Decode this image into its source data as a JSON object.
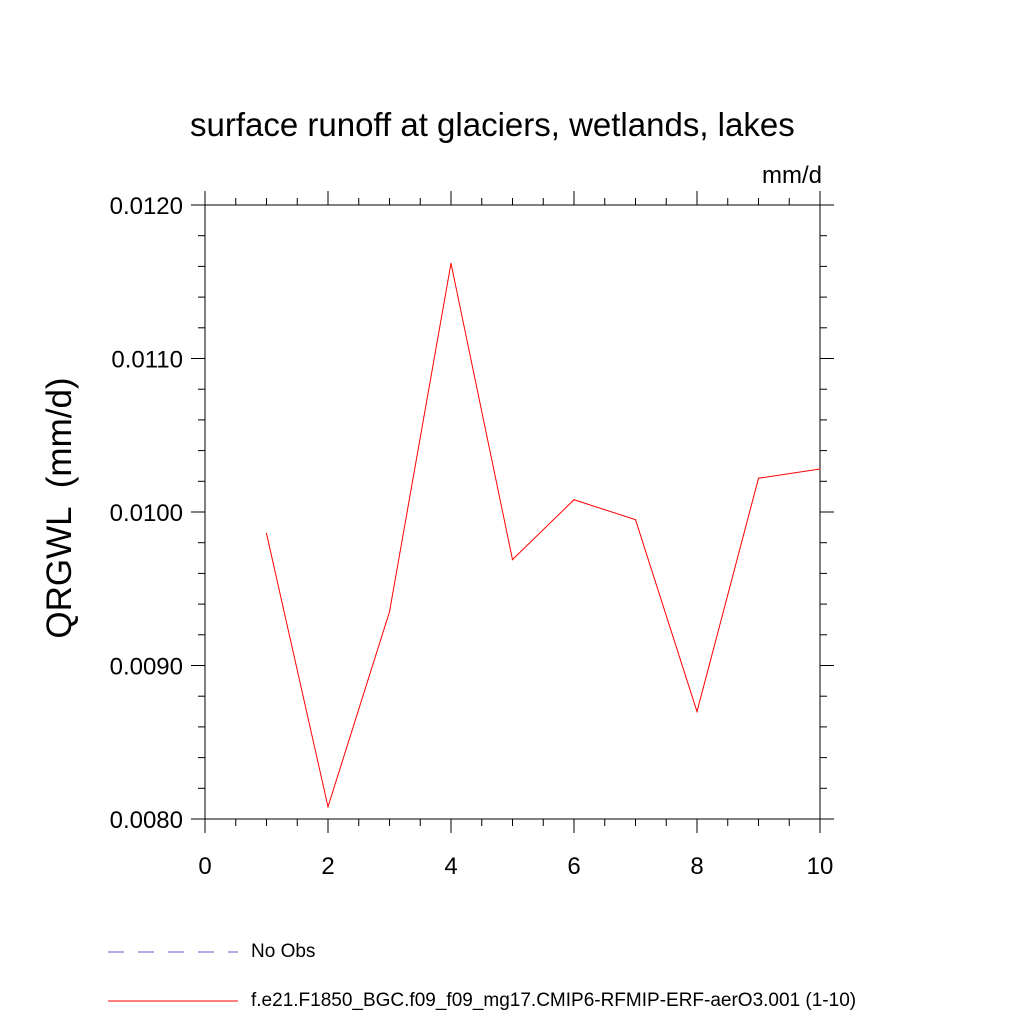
{
  "chart_data": {
    "type": "line",
    "title": "surface runoff at glaciers, wetlands, lakes",
    "units": "mm/d",
    "ylabel": "QRGWL  (mm/d)",
    "xlabel": "",
    "xlim": [
      0,
      10
    ],
    "ylim": [
      0.008,
      0.012
    ],
    "xticks": [
      0,
      2,
      4,
      6,
      8,
      10
    ],
    "xtick_labels": [
      "0",
      "2",
      "4",
      "6",
      "8",
      "10"
    ],
    "yticks": [
      0.008,
      0.009,
      0.01,
      0.011,
      0.012
    ],
    "ytick_labels": [
      "0.0080",
      "0.0090",
      "0.0100",
      "0.0110",
      "0.0120"
    ],
    "grid": false,
    "legend_position": "bottom",
    "series": [
      {
        "name": "f.e21.F1850_BGC.f09_f09_mg17.CMIP6-RFMIP-ERF-aerO3.001 (1-10)",
        "color": "#ff0000",
        "style": "solid",
        "x": [
          1,
          2,
          3,
          4,
          5,
          6,
          7,
          8,
          9,
          10
        ],
        "y": [
          0.00986,
          0.00808,
          0.00935,
          0.01162,
          0.00969,
          0.01008,
          0.00995,
          0.0087,
          0.01022,
          0.01028
        ]
      }
    ],
    "legend": [
      {
        "label": "No Obs",
        "color": "#6a5acd",
        "style": "dashed"
      },
      {
        "label": "f.e21.F1850_BGC.f09_f09_mg17.CMIP6-RFMIP-ERF-aerO3.001 (1-10)",
        "color": "#ff0000",
        "style": "solid"
      }
    ]
  }
}
